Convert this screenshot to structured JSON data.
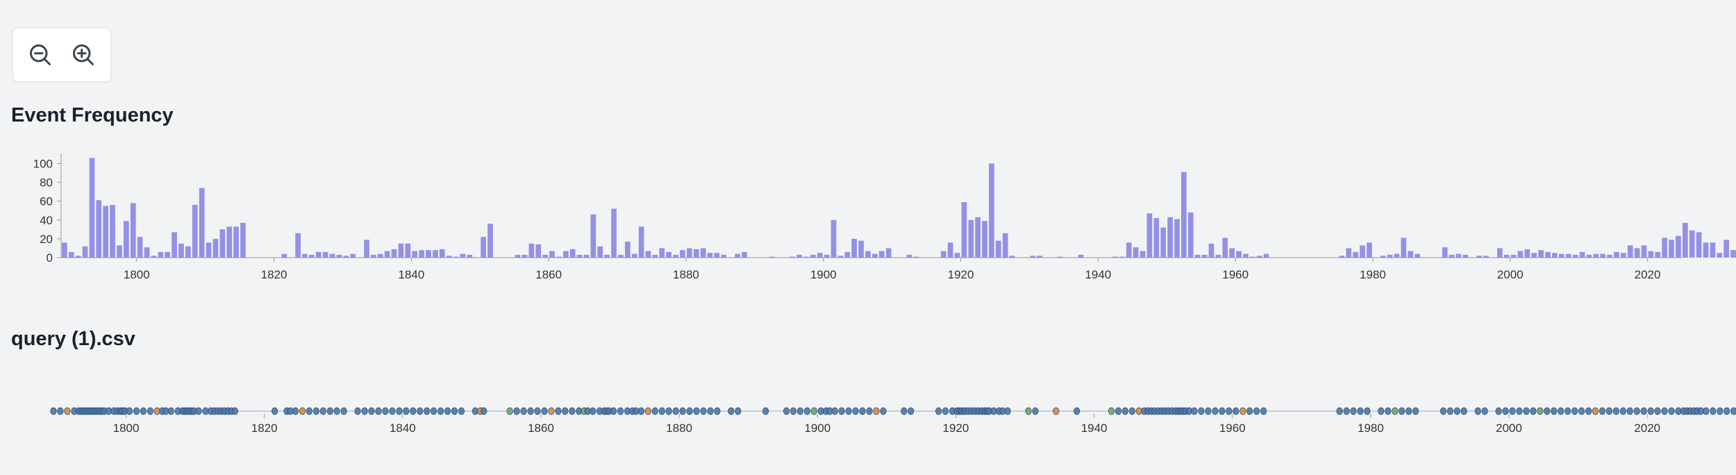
{
  "zoom": {
    "zoom_out_icon": "zoom-out-icon",
    "zoom_in_icon": "zoom-in-icon"
  },
  "frequency_section": {
    "title": "Event Frequency"
  },
  "file_section": {
    "title": "query (1).csv"
  },
  "colors": {
    "bar": "#9391e4",
    "axis": "#999999",
    "timeline_line": "#c9ced6",
    "event_blue": "#4a78ad",
    "event_orange": "#e0883c",
    "event_green": "#6aab65",
    "background": "#f2f3f5"
  },
  "chart_data": [
    {
      "type": "bar",
      "title": "Event Frequency",
      "xlabel": "",
      "ylabel": "",
      "xlim": [
        1789,
        2025
      ],
      "ylim": [
        0,
        110
      ],
      "y_ticks": [
        0,
        20,
        40,
        60,
        80,
        100
      ],
      "x_ticks": [
        1800,
        1820,
        1840,
        1860,
        1880,
        1900,
        1920,
        1940,
        1960,
        1980,
        2000,
        2020
      ],
      "grid": false,
      "start_year": 1789,
      "values": [
        16,
        6,
        2,
        12,
        106,
        61,
        55,
        56,
        13,
        39,
        58,
        22,
        11,
        2,
        6,
        6,
        27,
        15,
        12,
        56,
        74,
        16,
        20,
        30,
        33,
        33,
        37,
        0,
        0,
        0,
        0,
        0,
        4,
        0,
        26,
        4,
        3,
        6,
        6,
        4,
        3,
        2,
        4,
        0,
        19,
        3,
        4,
        7,
        9,
        15,
        15,
        7,
        8,
        8,
        8,
        9,
        2,
        1,
        4,
        3,
        0,
        22,
        36,
        0,
        0,
        0,
        3,
        3,
        15,
        14,
        3,
        7,
        1,
        7,
        9,
        3,
        3,
        46,
        12,
        3,
        52,
        3,
        17,
        4,
        33,
        7,
        3,
        10,
        6,
        3,
        8,
        10,
        9,
        10,
        5,
        5,
        3,
        0,
        4,
        6,
        0,
        0,
        0,
        1,
        0,
        0,
        1,
        3,
        1,
        3,
        5,
        3,
        40,
        2,
        6,
        20,
        18,
        7,
        4,
        7,
        10,
        0,
        0,
        3,
        1,
        0,
        0,
        0,
        7,
        16,
        5,
        59,
        40,
        43,
        39,
        100,
        18,
        26,
        2,
        0,
        0,
        2,
        2,
        0,
        0,
        1,
        0,
        0,
        3,
        0,
        0,
        0,
        0,
        1,
        1,
        16,
        11,
        7,
        47,
        42,
        32,
        43,
        41,
        91,
        48,
        3,
        3,
        15,
        3,
        21,
        10,
        7,
        4,
        1,
        2,
        4,
        0,
        0,
        0,
        0,
        0,
        0,
        0,
        0,
        0,
        0,
        2,
        10,
        6,
        13,
        16,
        0,
        2,
        3,
        4,
        21,
        7,
        4,
        0,
        0,
        0,
        11,
        3,
        4,
        3,
        0,
        2,
        2,
        0,
        10,
        3,
        3,
        7,
        9,
        5,
        8,
        6,
        5,
        4,
        4,
        3,
        6,
        3,
        4,
        4,
        3,
        6,
        5,
        13,
        10,
        13,
        7,
        6,
        21,
        19,
        23,
        37,
        29,
        27,
        16,
        16,
        5,
        19,
        8,
        36,
        20,
        7
      ]
    },
    {
      "type": "scatter",
      "title": "query (1).csv",
      "xlim": [
        1789,
        2025
      ],
      "x_ticks": [
        1800,
        1820,
        1840,
        1860,
        1880,
        1900,
        1920,
        1940,
        1960,
        1980,
        2000,
        2020
      ],
      "note_series": "event markers along a timeline",
      "orange_years": [
        1791,
        1804,
        1825,
        1851,
        1861,
        1875,
        1889,
        1908,
        1934,
        1946,
        1961,
        1994,
        2012
      ],
      "green_years": [
        1855,
        1866,
        1899,
        1930,
        1942,
        1983,
        2004
      ]
    }
  ]
}
